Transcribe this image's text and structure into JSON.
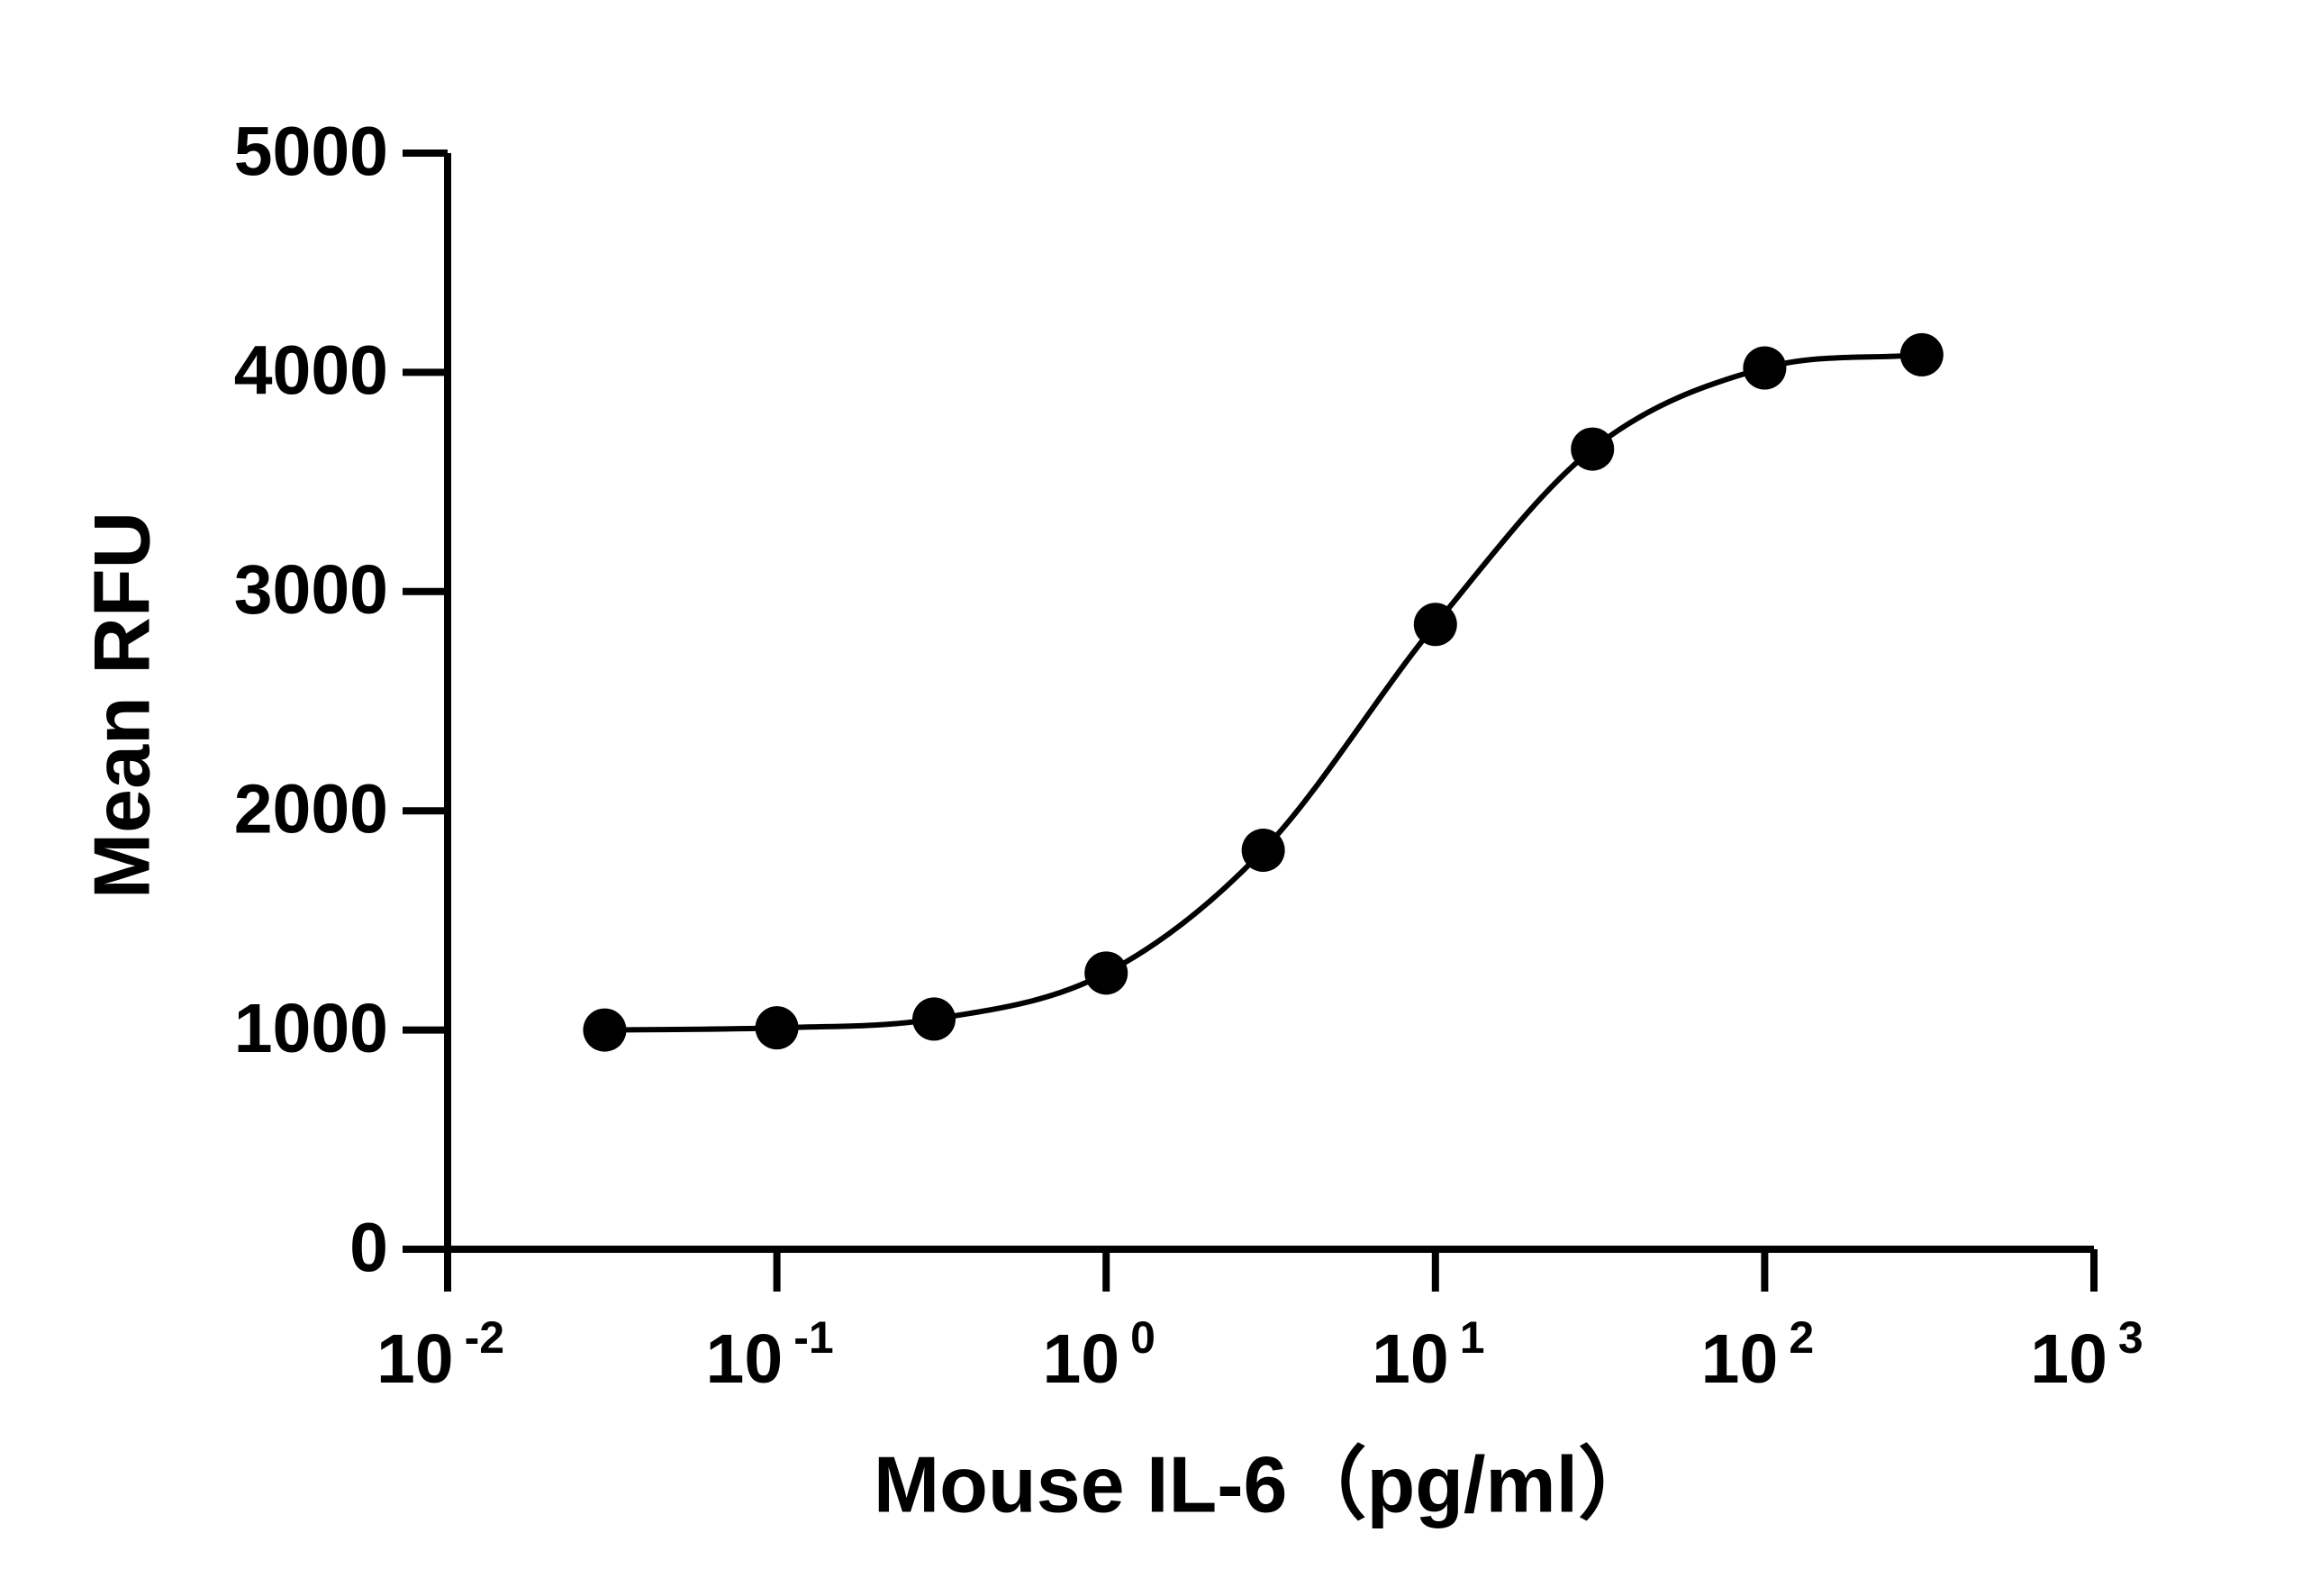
{
  "chart_data": {
    "type": "line",
    "x_label": "Mouse IL-6（pg/ml）",
    "y_label": "Mean RFU",
    "xscale": "log",
    "xlim": [
      0.01,
      1000
    ],
    "xticks": [
      {
        "value": 0.01,
        "label": "10",
        "exponent": "-2"
      },
      {
        "value": 0.1,
        "label": "10",
        "exponent": "-1"
      },
      {
        "value": 1,
        "label": "10",
        "exponent": "0"
      },
      {
        "value": 10,
        "label": "10",
        "exponent": "1"
      },
      {
        "value": 100,
        "label": "10",
        "exponent": "2"
      },
      {
        "value": 1000,
        "label": "10",
        "exponent": "3"
      }
    ],
    "ylim": [
      0,
      5000
    ],
    "yticks": [
      0,
      1000,
      2000,
      3000,
      4000,
      5000
    ],
    "grid": false,
    "curve": "smooth",
    "series": [
      {
        "color": "#000000",
        "x": [
          0.03,
          0.1,
          0.3,
          1,
          3,
          10,
          30,
          100,
          300
        ],
        "values": [
          1000,
          1010,
          1050,
          1260,
          1820,
          2850,
          3650,
          4020,
          4080
        ]
      }
    ]
  }
}
